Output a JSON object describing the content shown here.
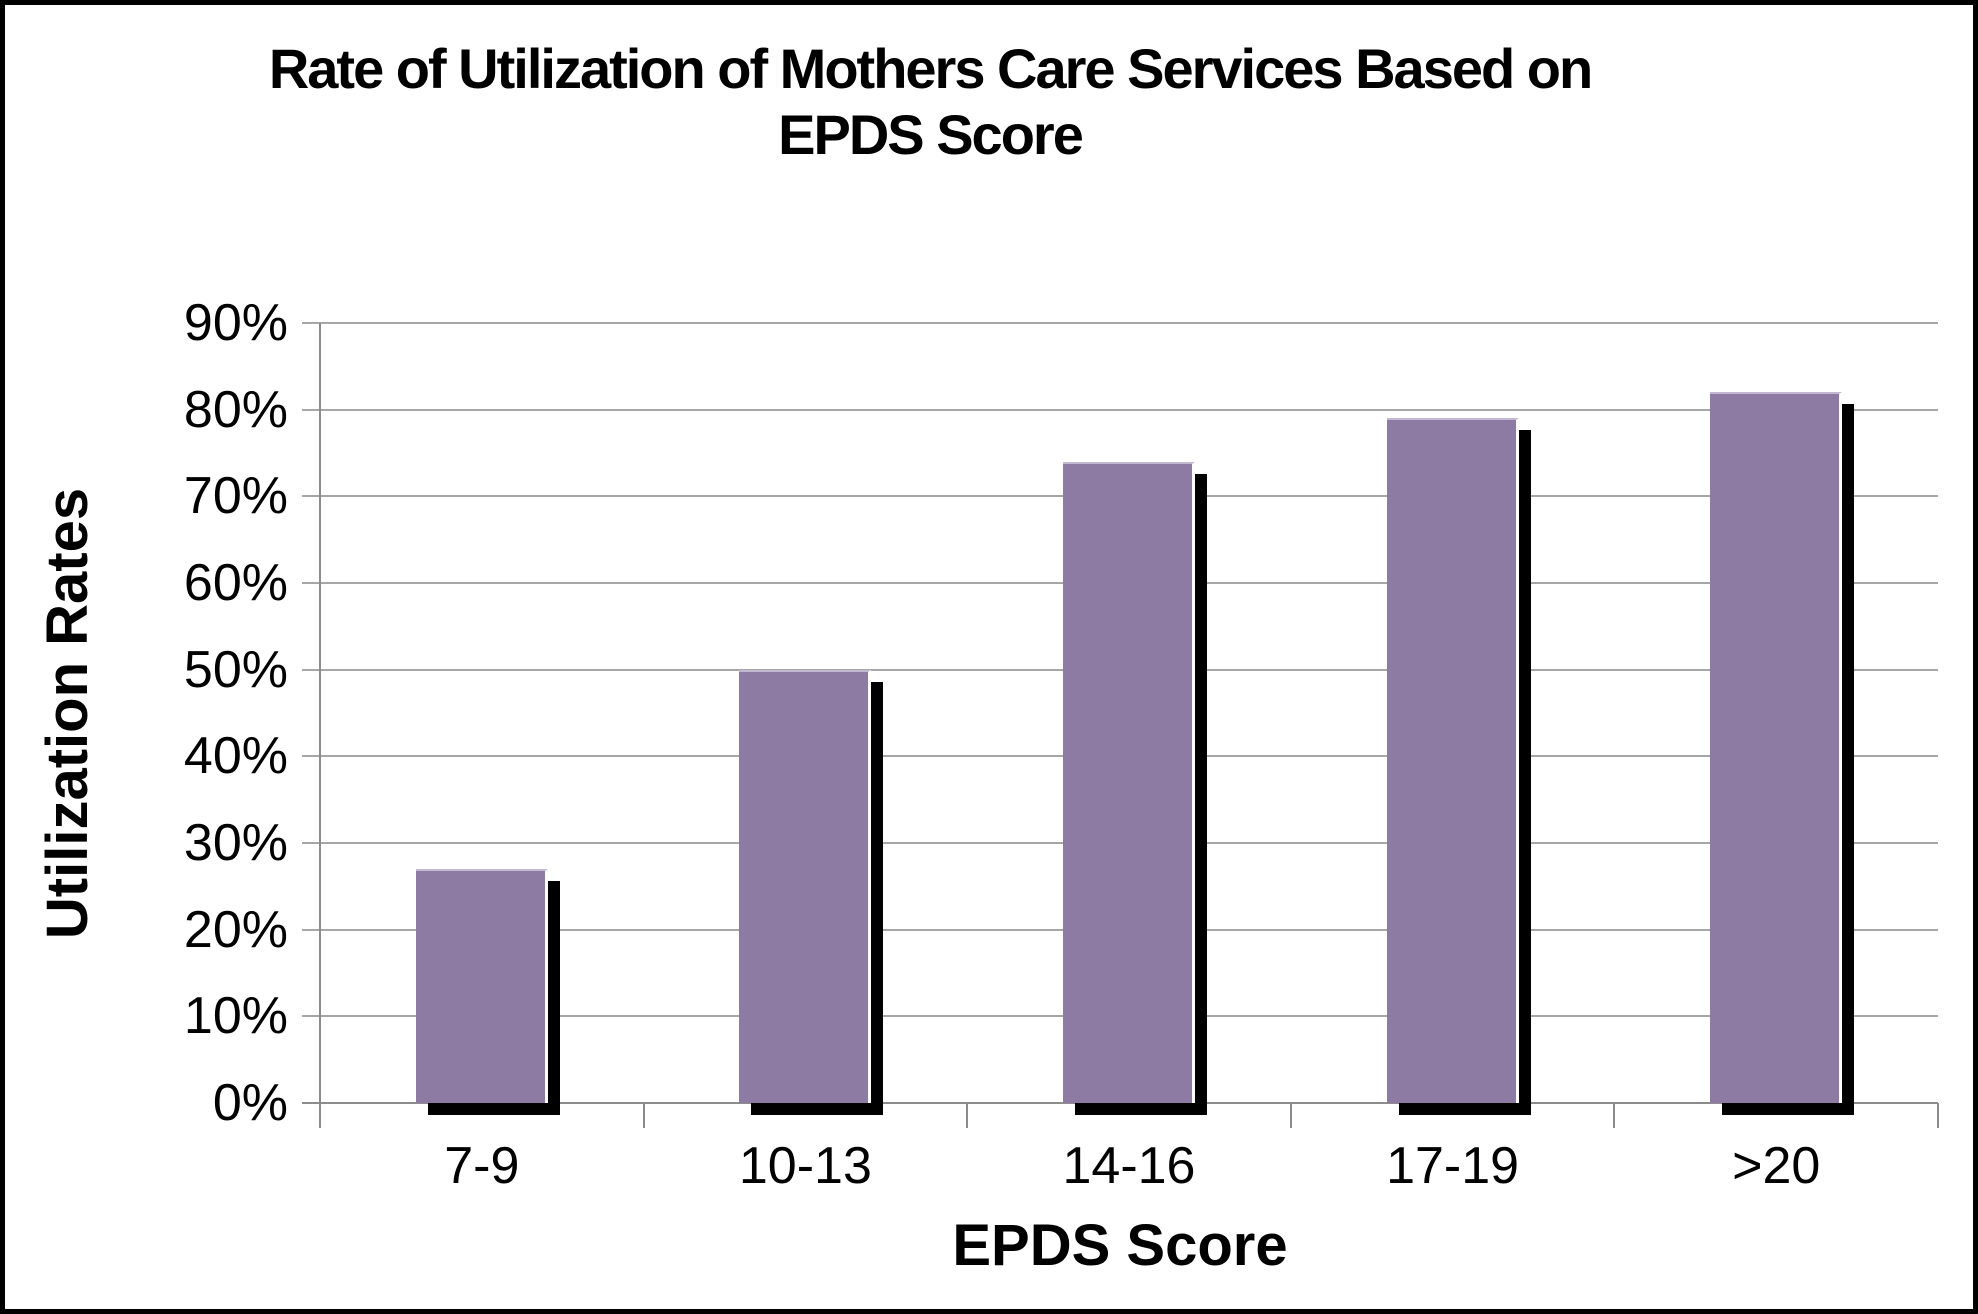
{
  "chart_data": {
    "type": "bar",
    "title": "Rate of Utilization of Mothers Care Services Based on EPDS Score",
    "title_lines": [
      "Rate of Utilization of Mothers Care Services Based on",
      "EPDS Score"
    ],
    "categories": [
      "7-9",
      "10-13",
      "14-16",
      "17-19",
      ">20"
    ],
    "values": [
      27,
      50,
      74,
      79,
      82
    ],
    "unit": "%",
    "xlabel": "EPDS Score",
    "ylabel": "Utilization Rates",
    "ylim": [
      0,
      90
    ],
    "ytick_step": 10,
    "ytick_labels": [
      "0%",
      "10%",
      "20%",
      "30%",
      "40%",
      "50%",
      "60%",
      "70%",
      "80%",
      "90%"
    ],
    "grid": true,
    "legend": false,
    "colors": {
      "bar_fill": "#8E7BA4",
      "bar_top_edge": "#C3B8D2",
      "bar_gap_edge": "#FFFFFF",
      "bar_shadow": "#000000",
      "gridline": "#A6A6A6",
      "axis": "#8C8C8C",
      "text": "#000000",
      "background": "#FFFFFF",
      "frame": "#000000"
    }
  }
}
